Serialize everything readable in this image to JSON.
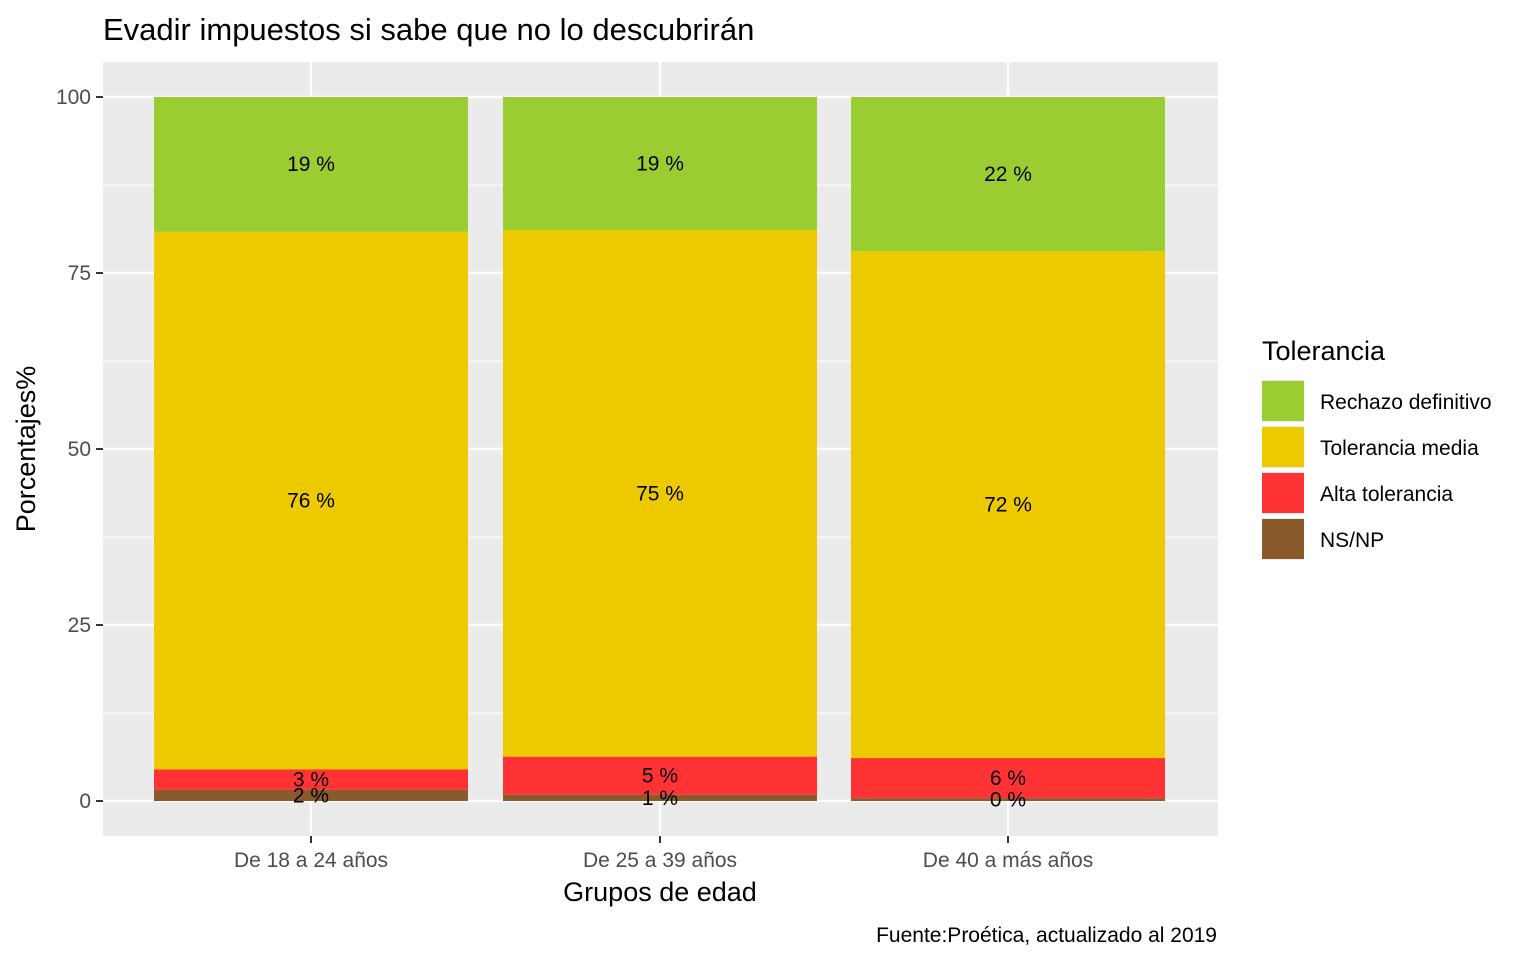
{
  "chart_data": {
    "type": "bar",
    "stacked": true,
    "title": "Evadir impuestos si sabe que no lo descubrirán",
    "xlabel": "Grupos de edad",
    "ylabel": "Porcentajes%",
    "caption": "Fuente:Proética, actualizado al 2019",
    "categories": [
      "De 18 a 24 años",
      "De 25 a 39 años",
      "De 40 a más años"
    ],
    "ylim": [
      0,
      100
    ],
    "yticks": [
      0,
      25,
      50,
      75,
      100
    ],
    "grid": true,
    "legend": {
      "title": "Tolerancia",
      "position": "right",
      "entries": [
        "Rechazo definitivo",
        "Tolerancia media",
        "Alta tolerancia",
        "NS/NP"
      ]
    },
    "series": [
      {
        "name": "NS/NP",
        "color": "#8B5A2B",
        "values": [
          1.6,
          0.9,
          0.4
        ],
        "labels": [
          "2 %",
          "1 %",
          "0 %"
        ]
      },
      {
        "name": "Alta tolerancia",
        "color": "#FF3333",
        "values": [
          2.9,
          5.4,
          5.7
        ],
        "labels": [
          "3 %",
          "5 %",
          "6 %"
        ]
      },
      {
        "name": "Tolerancia media",
        "color": "#EDC900",
        "values": [
          76.4,
          74.8,
          72.0
        ],
        "labels": [
          "76 %",
          "75 %",
          "72 %"
        ]
      },
      {
        "name": "Rechazo definitivo",
        "color": "#9ACD32",
        "values": [
          19.1,
          18.9,
          21.9
        ],
        "labels": [
          "19 %",
          "19 %",
          "22 %"
        ]
      }
    ],
    "colors": {
      "panel_background": "#EBEBEB",
      "grid_line": "#FFFFFF",
      "tick_text": "#4D4D4D"
    }
  }
}
